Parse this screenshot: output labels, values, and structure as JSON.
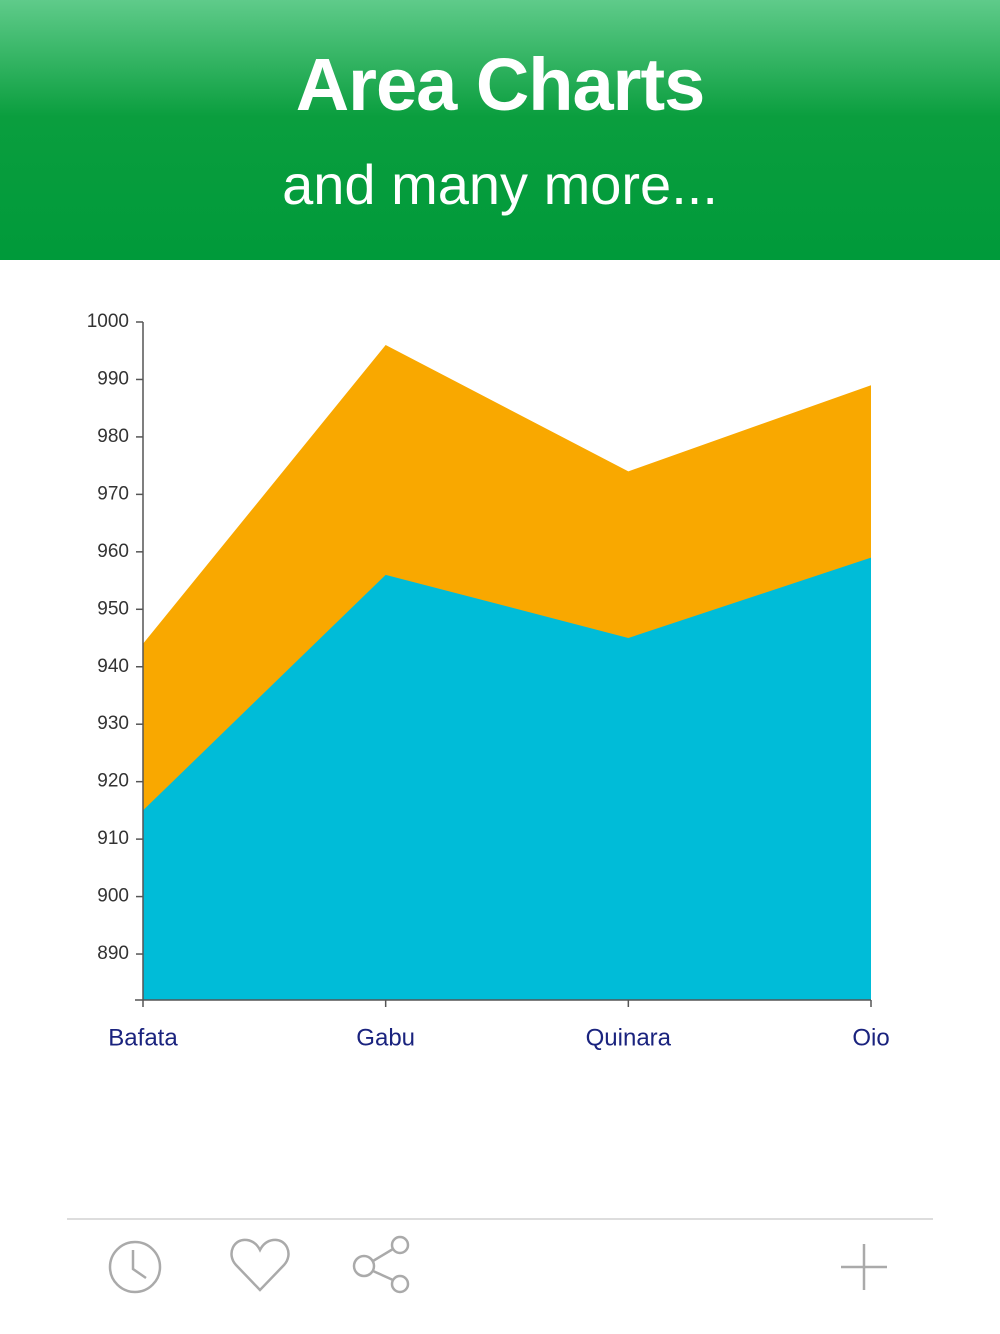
{
  "header": {
    "title": "Area Charts",
    "subtitle": "and many more..."
  },
  "chart_data": {
    "type": "area",
    "categories": [
      "Bafata",
      "Gabu",
      "Quinara",
      "Oio"
    ],
    "series": [
      {
        "color": "#f9a800",
        "values": [
          944,
          996,
          974,
          989
        ]
      },
      {
        "color": "#00bcd8",
        "values": [
          915,
          956,
          945,
          959
        ]
      }
    ],
    "ylim": [
      882,
      1000
    ],
    "yticks": [
      890,
      900,
      910,
      920,
      930,
      940,
      950,
      960,
      970,
      980,
      990,
      1000
    ]
  }
}
